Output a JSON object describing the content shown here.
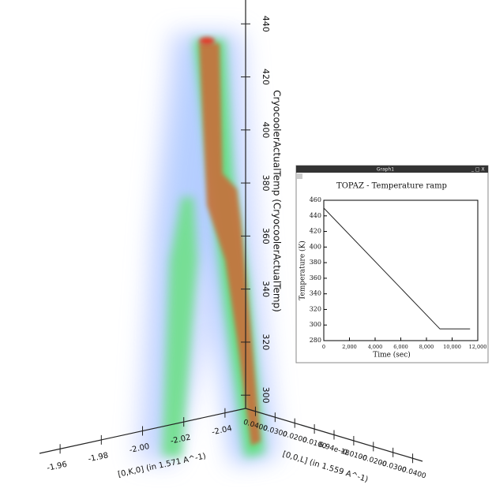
{
  "chart_data": [
    {
      "type": "volume",
      "z_label": "CryocoolerActualTemp (CryocoolerActualTemp)",
      "zlim": [
        295,
        449
      ],
      "zticks": [
        300,
        320,
        340,
        360,
        380,
        400,
        420,
        440
      ],
      "k_label": "[0,K,0] (in 1.571 A^-1)",
      "klim": [
        -2.05,
        -1.95
      ],
      "kticks": [
        {
          "value": -2.04,
          "label": "-2.04"
        },
        {
          "value": -2.02,
          "label": "-2.02"
        },
        {
          "value": -2,
          "label": "-2.00"
        },
        {
          "value": -1.98,
          "label": "-1.98"
        },
        -1.96
      ],
      "l_label": "[0,0,L] (in 1.559 A^-1)",
      "llim": [
        0.045,
        -0.045
      ],
      "lticks": [
        {
          "value": 0.04,
          "label": "0.0400"
        },
        {
          "value": 0.03,
          "label": "0.0300"
        },
        {
          "value": 0.02,
          "label": "0.0200"
        },
        {
          "value": 0.01,
          "label": "0.0100"
        },
        {
          "value": 6.94e-18,
          "label": "6.94e-18"
        },
        {
          "value": -0.01,
          "label": "-0.0100"
        },
        {
          "value": -0.02,
          "label": "-0.0200"
        },
        {
          "value": -0.03,
          "label": "-0.0300"
        },
        {
          "value": -0.04,
          "label": "-0.0400"
        }
      ]
    },
    {
      "type": "line",
      "window_title": "Graph1",
      "title": "TOPAZ - Temperature ramp",
      "x_label": "Time (sec)",
      "y_label": "Temperature (K)",
      "x": [
        0,
        9050,
        11400
      ],
      "series": [
        {
          "name": "Temperature",
          "color": "#222222",
          "values": [
            450,
            295,
            295
          ]
        }
      ],
      "xlim": [
        0,
        12000
      ],
      "xticks": [
        0,
        {
          "value": 2000,
          "label": "2,000"
        },
        {
          "value": 4000,
          "label": "4,000"
        },
        {
          "value": 6000,
          "label": "6,000"
        },
        {
          "value": 8000,
          "label": "8,000"
        },
        {
          "value": 10000,
          "label": "10,000"
        },
        {
          "value": 12000,
          "label": "12,000"
        }
      ],
      "ylim": [
        280,
        460
      ],
      "yticks": [
        280,
        300,
        320,
        340,
        360,
        380,
        400,
        420,
        440,
        460
      ]
    }
  ]
}
